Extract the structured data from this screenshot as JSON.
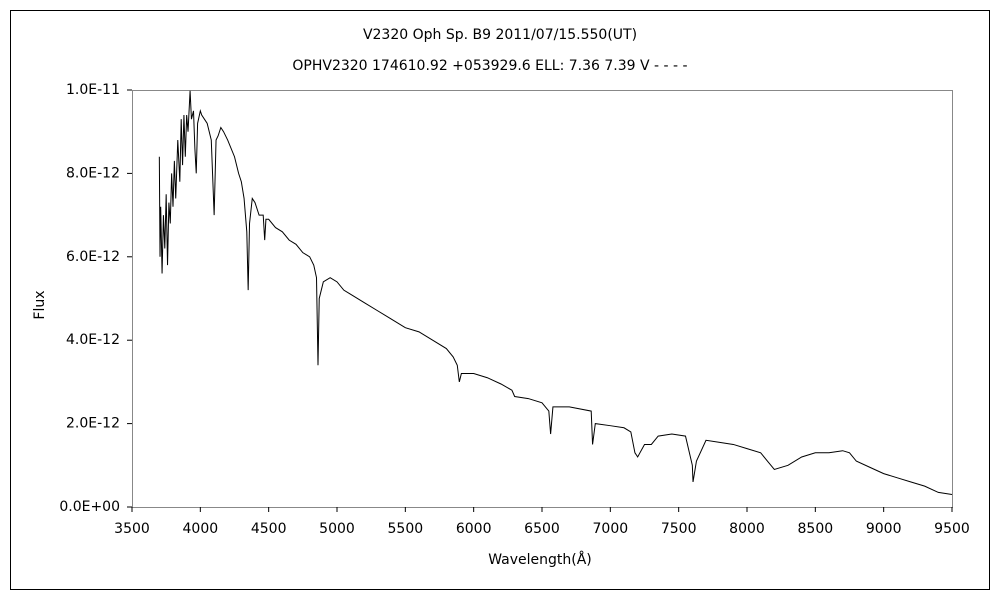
{
  "chart_data": {
    "type": "line",
    "title": "V2320 Oph    Sp. B9    2011/07/15.550(UT)",
    "subtitle": "OPHV2320 174610.92 +053929.6 ELL: 7.36 7.39  V - - - -",
    "x_label": "Wavelength(Å)",
    "y_label": "Flux",
    "xlim": [
      3500,
      9500
    ],
    "xticks": [
      3500,
      4000,
      4500,
      5000,
      5500,
      6000,
      6500,
      7000,
      7500,
      8000,
      8500,
      9000,
      9500
    ],
    "ylim": [
      0,
      1e-11
    ],
    "yticks": [
      {
        "value": 0,
        "label": "0.0E+00"
      },
      {
        "value": 2e-12,
        "label": "2.0E-12"
      },
      {
        "value": 4e-12,
        "label": "4.0E-12"
      },
      {
        "value": 6e-12,
        "label": "6.0E-12"
      },
      {
        "value": 8e-12,
        "label": "8.0E-12"
      },
      {
        "value": 1e-11,
        "label": "1.0E-11"
      }
    ],
    "grid": false,
    "series": [
      {
        "color": "#000000",
        "x": [
          3700,
          3705,
          3710,
          3720,
          3730,
          3740,
          3750,
          3760,
          3770,
          3780,
          3790,
          3800,
          3810,
          3820,
          3835,
          3850,
          3860,
          3870,
          3880,
          3890,
          3900,
          3910,
          3925,
          3935,
          3950,
          3960,
          3970,
          3980,
          4000,
          4010,
          4030,
          4050,
          4080,
          4101,
          4115,
          4130,
          4150,
          4170,
          4200,
          4250,
          4280,
          4300,
          4320,
          4340,
          4350,
          4360,
          4380,
          4400,
          4430,
          4460,
          4471,
          4480,
          4500,
          4550,
          4600,
          4650,
          4700,
          4750,
          4800,
          4830,
          4850,
          4861,
          4870,
          4900,
          4950,
          5000,
          5050,
          5100,
          5200,
          5300,
          5400,
          5500,
          5600,
          5700,
          5800,
          5850,
          5880,
          5895,
          5910,
          6000,
          6100,
          6200,
          6280,
          6300,
          6400,
          6500,
          6550,
          6563,
          6580,
          6700,
          6860,
          6870,
          6890,
          7000,
          7100,
          7150,
          7180,
          7200,
          7250,
          7300,
          7350,
          7450,
          7550,
          7600,
          7605,
          7630,
          7700,
          7800,
          7900,
          8000,
          8100,
          8150,
          8200,
          8300,
          8400,
          8500,
          8600,
          8700,
          8750,
          8800,
          8900,
          9000,
          9100,
          9200,
          9300,
          9400,
          9500
        ],
        "values": [
          8.4e-12,
          6e-12,
          7.2e-12,
          5.6e-12,
          7e-12,
          6.2e-12,
          7.5e-12,
          5.8e-12,
          7.3e-12,
          6.8e-12,
          8e-12,
          7.2e-12,
          8.3e-12,
          7.4e-12,
          8.8e-12,
          7.8e-12,
          9.3e-12,
          8.2e-12,
          9.4e-12,
          8.4e-12,
          9.4e-12,
          9e-12,
          9.98e-12,
          9.3e-12,
          9.5e-12,
          8.6e-12,
          8e-12,
          9.2e-12,
          9.5e-12,
          9.4e-12,
          9.3e-12,
          9.2e-12,
          8.8e-12,
          7e-12,
          8.8e-12,
          8.9e-12,
          9.1e-12,
          9e-12,
          8.8e-12,
          8.4e-12,
          8e-12,
          7.8e-12,
          7.4e-12,
          6.6e-12,
          5.2e-12,
          6.8e-12,
          7.4e-12,
          7.3e-12,
          7e-12,
          7e-12,
          6.4e-12,
          6.9e-12,
          6.9e-12,
          6.7e-12,
          6.6e-12,
          6.4e-12,
          6.3e-12,
          6.1e-12,
          6e-12,
          5.8e-12,
          5.5e-12,
          3.4e-12,
          5e-12,
          5.4e-12,
          5.5e-12,
          5.4e-12,
          5.2e-12,
          5.1e-12,
          4.9e-12,
          4.7e-12,
          4.5e-12,
          4.3e-12,
          4.2e-12,
          4e-12,
          3.8e-12,
          3.6e-12,
          3.4e-12,
          3e-12,
          3.2e-12,
          3.2e-12,
          3.1e-12,
          2.95e-12,
          2.8e-12,
          2.65e-12,
          2.6e-12,
          2.5e-12,
          2.3e-12,
          1.75e-12,
          2.4e-12,
          2.4e-12,
          2.3e-12,
          1.5e-12,
          2e-12,
          1.95e-12,
          1.9e-12,
          1.8e-12,
          1.3e-12,
          1.2e-12,
          1.5e-12,
          1.5e-12,
          1.7e-12,
          1.75e-12,
          1.7e-12,
          1e-12,
          6e-13,
          1.1e-12,
          1.6e-12,
          1.55e-12,
          1.5e-12,
          1.4e-12,
          1.3e-12,
          1.1e-12,
          9e-13,
          1e-12,
          1.2e-12,
          1.3e-12,
          1.3e-12,
          1.35e-12,
          1.3e-12,
          1.1e-12,
          9.5e-13,
          8e-13,
          7e-13,
          6e-13,
          5e-13,
          3.5e-13,
          3e-13
        ]
      }
    ]
  }
}
